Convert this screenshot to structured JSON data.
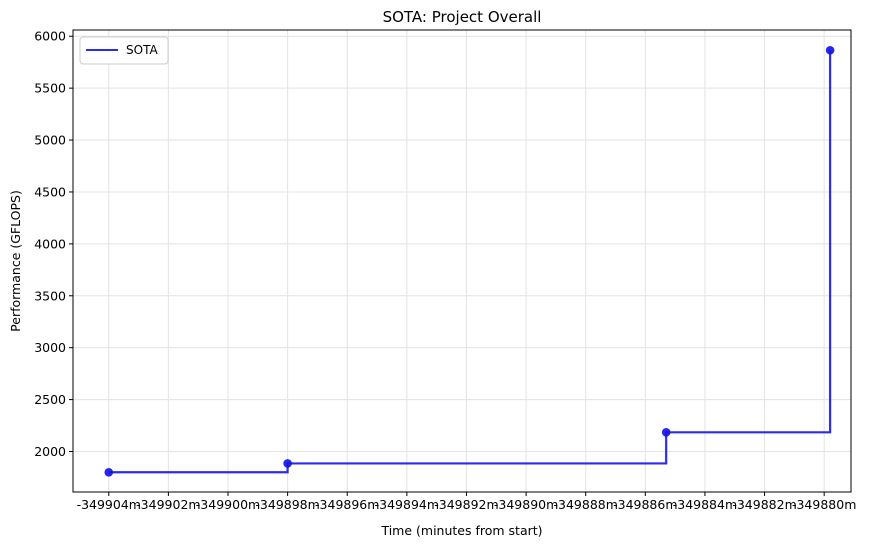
{
  "chart_data": {
    "type": "line",
    "title": "SOTA: Project Overall",
    "xlabel": "Time (minutes from start)",
    "ylabel": "Performance (GFLOPS)",
    "xlim": [
      -349905.2,
      -349879.1
    ],
    "ylim": [
      1610,
      6060
    ],
    "grid": true,
    "legend_position": "top-left",
    "x_ticks": [
      -349904,
      -349902,
      -349900,
      -349898,
      -349896,
      -349894,
      -349892,
      -349890,
      -349888,
      -349886,
      -349884,
      -349882,
      -349880
    ],
    "x_tick_labels": [
      "-349904m",
      "-349902m",
      "-349900m",
      "-349898m",
      "-349896m",
      "-349894m",
      "-349892m",
      "-349890m",
      "-349888m",
      "-349886m",
      "-349884m",
      "-349882m",
      "-349880m"
    ],
    "y_ticks": [
      2000,
      2500,
      3000,
      3500,
      4000,
      4500,
      5000,
      5500,
      6000
    ],
    "y_tick_labels": [
      "2000",
      "2500",
      "3000",
      "3500",
      "4000",
      "4500",
      "5000",
      "5500",
      "6000"
    ],
    "series": [
      {
        "name": "SOTA",
        "color": "#1515e6",
        "step": "post",
        "x": [
          -349904.0,
          -349898.0,
          -349885.3,
          -349879.8
        ],
        "y": [
          1800,
          1885,
          2185,
          5865
        ]
      }
    ]
  }
}
